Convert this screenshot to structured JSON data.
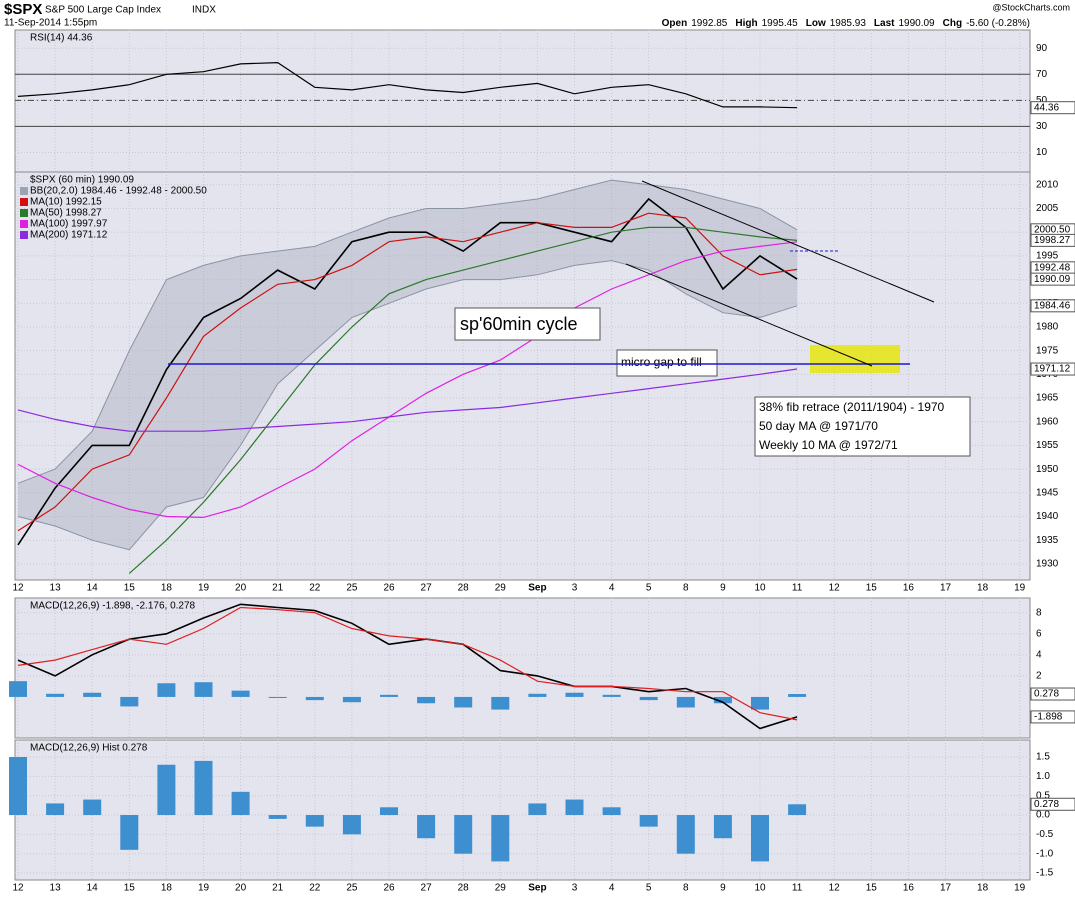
{
  "header": {
    "symbol": "$SPX",
    "name": "S&P 500 Large Cap Index",
    "exchange": "INDX",
    "datetime": "11-Sep-2014 1:55pm",
    "watermark": "@StockCharts.com",
    "quote": [
      {
        "label": "Open",
        "value": "1992.85"
      },
      {
        "label": "High",
        "value": "1995.45"
      },
      {
        "label": "Low",
        "value": "1985.93"
      },
      {
        "label": "Last",
        "value": "1990.09"
      },
      {
        "label": "Chg",
        "value": "-5.60 (-0.28%)"
      }
    ]
  },
  "chart_data": [
    {
      "type": "line",
      "title": "RSI(14) 44.36",
      "ylim": [
        -5,
        104
      ],
      "yticks": [
        10,
        30,
        50,
        70,
        90
      ],
      "color": "#000000",
      "values": [
        53,
        55,
        58,
        62,
        70,
        72,
        78,
        79,
        60,
        58,
        62,
        58,
        56,
        60,
        63,
        55,
        60,
        62,
        55,
        45,
        45,
        44.36,
        null,
        null,
        null,
        null,
        null,
        null
      ],
      "levels": [
        {
          "value": 70,
          "style": "solid"
        },
        {
          "value": 50,
          "style": "dashed"
        },
        {
          "value": 30,
          "style": "solid"
        }
      ],
      "value_tags": [
        {
          "value": 44.36,
          "label": "44.36"
        }
      ]
    },
    {
      "type": "line",
      "title": "$SPX (60 min) 1990.09",
      "categories": [
        "12",
        "13",
        "14",
        "15",
        "18",
        "19",
        "20",
        "21",
        "22",
        "25",
        "26",
        "27",
        "28",
        "29",
        "Sep",
        "3",
        "4",
        "5",
        "8",
        "9",
        "10",
        "11",
        "12",
        "15",
        "16",
        "17",
        "18",
        "19"
      ],
      "ylim": [
        1926.6,
        2012.7
      ],
      "yticks": [
        1930,
        1935,
        1940,
        1945,
        1950,
        1955,
        1960,
        1965,
        1970,
        1975,
        1980,
        1985,
        1990,
        1995,
        2000,
        2005,
        2010
      ],
      "band": {
        "name": "BB(20,2.0) 1984.46 - 1992.48 - 2000.50",
        "color": "#9aa3b3",
        "upper": [
          1947,
          1950,
          1958,
          1975,
          1990,
          1993,
          1995,
          1996,
          1997,
          2000,
          2003,
          2005,
          2005,
          2006,
          2007,
          2009,
          2011,
          2010,
          2009,
          2007,
          2005,
          2000.5,
          null,
          null,
          null,
          null,
          null,
          null
        ],
        "lower": [
          1940,
          1938,
          1935,
          1933,
          1942,
          1944,
          1955,
          1968,
          1975,
          1982,
          1985,
          1988,
          1990,
          1990,
          1991,
          1993,
          1994,
          1992,
          1987,
          1983,
          1982,
          1984.46,
          null,
          null,
          null,
          null,
          null,
          null
        ]
      },
      "series": [
        {
          "color": "#000000",
          "values": [
            1934,
            1946,
            1955,
            1955,
            1971,
            1982,
            1986,
            1992,
            1988,
            1998,
            2000,
            2000,
            1996,
            2002,
            2002,
            2000,
            1998,
            2007,
            2001,
            1988,
            1995,
            1990.09,
            null,
            null,
            null,
            null,
            null,
            null
          ]
        },
        {
          "name": "MA(10) 1992.15",
          "color": "#d01010",
          "values": [
            1937,
            1942,
            1950,
            1953,
            1965,
            1978,
            1984,
            1989,
            1990,
            1993,
            1998,
            1999,
            1998,
            2000,
            2002,
            2001,
            2001,
            2004,
            2003,
            1995,
            1991,
            1992.15,
            null,
            null,
            null,
            null,
            null,
            null
          ]
        },
        {
          "name": "MA(50) 1998.27",
          "color": "#2a7a2a",
          "values": [
            null,
            null,
            null,
            1928,
            1935,
            1943,
            1952,
            1962,
            1972,
            1980,
            1987,
            1990,
            1992,
            1994,
            1996,
            1998,
            2000,
            2001,
            2001,
            2000,
            1999,
            1998.27,
            null,
            null,
            null,
            null,
            null,
            null
          ]
        },
        {
          "name": "MA(100) 1997.97",
          "color": "#e020e0",
          "values": [
            1951,
            1947,
            1944,
            1941.5,
            1940,
            1939.8,
            1942,
            1946,
            1950,
            1956,
            1961,
            1966,
            1970,
            1973,
            1978,
            1984,
            1988,
            1991,
            1994,
            1996,
            1997,
            1997.97,
            null,
            null,
            null,
            null,
            null,
            null
          ]
        },
        {
          "name": "MA(200) 1971.12",
          "color": "#8a2be2",
          "values": [
            1962.5,
            1960.5,
            1959,
            1958,
            1958,
            1958,
            1958.5,
            1959,
            1959.5,
            1960,
            1961,
            1962,
            1962.5,
            1963,
            1964,
            1965,
            1966,
            1967,
            1968,
            1969,
            1970,
            1971.12,
            null,
            null,
            null,
            null,
            null,
            null
          ]
        }
      ],
      "value_tags": [
        {
          "value": 2000.5,
          "label": "2000.50"
        },
        {
          "value": 1998.27,
          "label": "1998.27"
        },
        {
          "value": 1992.48,
          "label": "1992.48"
        },
        {
          "value": 1990.09,
          "label": "1990.09"
        },
        {
          "value": 1984.46,
          "label": "1984.46"
        },
        {
          "value": 1971.12,
          "label": "1971.12"
        }
      ],
      "annotations": [
        "sp'60min cycle",
        "micro gap to fill"
      ],
      "note": [
        "38% fib retrace (2011/1904) - 1970",
        "50 day MA @ 1971/70",
        "Weekly 10 MA @ 1972/71"
      ]
    },
    {
      "type": "line",
      "title": "MACD(12,26,9) -1.898, -2.176, 0.278",
      "ylim": [
        -3.9,
        9.4
      ],
      "yticks": [
        2,
        4,
        6,
        8
      ],
      "series": [
        {
          "color": "#000000",
          "values": [
            3.5,
            2,
            4,
            5.5,
            6,
            7.5,
            8.8,
            8.5,
            8.2,
            7,
            5,
            5.5,
            5,
            2.5,
            2,
            1,
            1,
            0.5,
            0.8,
            -0.5,
            -3,
            -1.898,
            null,
            null,
            null,
            null,
            null,
            null
          ]
        },
        {
          "color": "#e02020",
          "values": [
            3,
            3.5,
            4.5,
            5.5,
            5,
            6.5,
            8.5,
            8.3,
            8,
            6.5,
            5.8,
            5.5,
            5,
            3.5,
            1.5,
            1,
            1,
            0.8,
            0.5,
            0.5,
            -1.5,
            -2.176,
            null,
            null,
            null,
            null,
            null,
            null
          ]
        }
      ],
      "value_tags": [
        {
          "value": 0.278,
          "label": "0.278"
        },
        {
          "value": -1.898,
          "label": "-1.898"
        }
      ]
    },
    {
      "type": "bar",
      "title": "MACD(12,26,9) Hist 0.278",
      "color": "#3d8fcf",
      "categories": [
        "12",
        "13",
        "14",
        "15",
        "18",
        "19",
        "20",
        "21",
        "22",
        "25",
        "26",
        "27",
        "28",
        "29",
        "Sep",
        "3",
        "4",
        "5",
        "8",
        "9",
        "10",
        "11",
        "12",
        "15",
        "16",
        "17",
        "18",
        "19"
      ],
      "values": [
        1.5,
        0.3,
        0.4,
        -0.9,
        1.3,
        1.4,
        0.6,
        -0.1,
        -0.3,
        -0.5,
        0.2,
        -0.6,
        -1.0,
        -1.2,
        0.3,
        0.4,
        0.2,
        -0.3,
        -1.0,
        -0.6,
        -1.2,
        0.278,
        null,
        null,
        null,
        null,
        null,
        null
      ],
      "ylim": [
        -1.68,
        1.94
      ],
      "yticks": [
        1.5,
        {
          "value": 1,
          "label": "1.0"
        },
        0.5,
        {
          "value": 0,
          "label": "0.0"
        },
        -0.5,
        {
          "value": -1,
          "label": "-1.0"
        },
        -1.5
      ],
      "value_tags": [
        {
          "value": 0.278,
          "label": "0.278"
        }
      ]
    }
  ]
}
